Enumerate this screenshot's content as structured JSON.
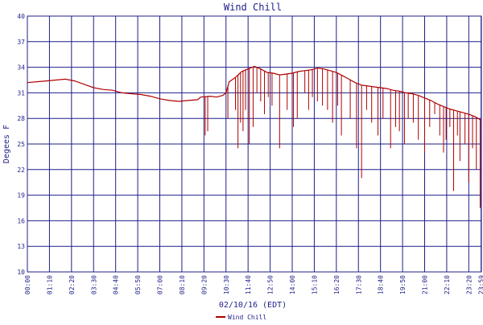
{
  "chart_data": {
    "type": "line",
    "title": "Wind Chill",
    "xlabel": "02/10/16 (EDT)",
    "ylabel": "Degees F",
    "ylim": [
      10,
      40
    ],
    "yticks": [
      10,
      13,
      16,
      19,
      22,
      25,
      28,
      31,
      34,
      37,
      40
    ],
    "x_range_minutes": [
      0,
      1440
    ],
    "xtick_labels": [
      "00:00",
      "01:10",
      "02:20",
      "03:30",
      "04:40",
      "05:50",
      "07:00",
      "08:10",
      "09:20",
      "10:30",
      "11:40",
      "12:50",
      "14:00",
      "15:10",
      "16:20",
      "17:30",
      "18:40",
      "19:50",
      "21:00",
      "22:10",
      "23:20",
      "23:59"
    ],
    "grid": true,
    "legend": "bottom-center",
    "colors": {
      "series": "#b00000",
      "grid": "#1f1f8a",
      "text": "#1f1f8a"
    },
    "series": [
      {
        "name": "Wind Chill",
        "x": [
          "00:00",
          "00:30",
          "01:00",
          "01:30",
          "02:00",
          "02:30",
          "03:00",
          "03:30",
          "04:00",
          "04:30",
          "05:00",
          "05:30",
          "06:00",
          "06:30",
          "07:00",
          "07:30",
          "08:00",
          "08:30",
          "09:00",
          "09:10",
          "09:40",
          "10:00",
          "10:20",
          "10:30",
          "10:40",
          "11:00",
          "11:20",
          "11:40",
          "12:00",
          "12:20",
          "12:40",
          "13:00",
          "13:20",
          "13:40",
          "14:00",
          "14:20",
          "14:40",
          "15:00",
          "15:20",
          "15:40",
          "16:00",
          "16:20",
          "16:40",
          "17:00",
          "17:20",
          "17:40",
          "18:00",
          "18:20",
          "18:40",
          "19:00",
          "19:20",
          "19:40",
          "20:00",
          "20:20",
          "20:40",
          "21:00",
          "21:20",
          "21:40",
          "22:00",
          "22:20",
          "22:40",
          "23:00",
          "23:20",
          "23:40",
          "23:59"
        ],
        "values": [
          32.2,
          32.3,
          32.4,
          32.5,
          32.6,
          32.4,
          32.0,
          31.6,
          31.4,
          31.3,
          31.0,
          30.9,
          30.8,
          30.6,
          30.3,
          30.1,
          30.0,
          30.1,
          30.2,
          30.5,
          30.6,
          30.5,
          30.7,
          31.0,
          32.3,
          32.8,
          33.5,
          33.8,
          34.1,
          33.8,
          33.4,
          33.3,
          33.1,
          33.2,
          33.3,
          33.5,
          33.6,
          33.7,
          33.9,
          33.8,
          33.6,
          33.4,
          33.0,
          32.6,
          32.2,
          31.9,
          31.8,
          31.7,
          31.6,
          31.5,
          31.3,
          31.2,
          31.0,
          30.9,
          30.7,
          30.4,
          30.1,
          29.7,
          29.4,
          29.1,
          28.9,
          28.7,
          28.5,
          28.2,
          27.8
        ]
      }
    ],
    "dips": [
      [
        "09:24",
        26.0
      ],
      [
        "09:32",
        26.5
      ],
      [
        "10:36",
        28.0
      ],
      [
        "11:00",
        29.0
      ],
      [
        "11:08",
        24.5
      ],
      [
        "11:16",
        27.5
      ],
      [
        "11:24",
        26.5
      ],
      [
        "11:32",
        29.0
      ],
      [
        "11:44",
        25.0
      ],
      [
        "11:56",
        27.0
      ],
      [
        "12:08",
        31.0
      ],
      [
        "12:20",
        30.0
      ],
      [
        "12:32",
        28.5
      ],
      [
        "12:44",
        30.5
      ],
      [
        "12:56",
        29.5
      ],
      [
        "13:20",
        24.5
      ],
      [
        "13:44",
        29.0
      ],
      [
        "14:04",
        27.0
      ],
      [
        "14:16",
        28.0
      ],
      [
        "14:40",
        31.0
      ],
      [
        "14:52",
        29.0
      ],
      [
        "15:04",
        30.5
      ],
      [
        "15:20",
        30.0
      ],
      [
        "15:36",
        29.5
      ],
      [
        "15:52",
        29.0
      ],
      [
        "16:08",
        27.5
      ],
      [
        "16:24",
        29.5
      ],
      [
        "16:36",
        26.0
      ],
      [
        "17:04",
        28.0
      ],
      [
        "17:24",
        24.5
      ],
      [
        "17:40",
        21.0
      ],
      [
        "17:56",
        29.0
      ],
      [
        "18:12",
        27.5
      ],
      [
        "18:32",
        26.0
      ],
      [
        "18:48",
        28.0
      ],
      [
        "19:12",
        24.5
      ],
      [
        "19:28",
        27.0
      ],
      [
        "19:40",
        26.5
      ],
      [
        "19:56",
        25.0
      ],
      [
        "20:08",
        28.0
      ],
      [
        "20:24",
        27.5
      ],
      [
        "20:40",
        25.5
      ],
      [
        "21:00",
        24.0
      ],
      [
        "21:16",
        27.0
      ],
      [
        "21:32",
        28.5
      ],
      [
        "21:48",
        26.0
      ],
      [
        "22:00",
        24.0
      ],
      [
        "22:08",
        25.5
      ],
      [
        "22:20",
        27.0
      ],
      [
        "22:32",
        19.5
      ],
      [
        "22:44",
        26.0
      ],
      [
        "22:52",
        23.0
      ],
      [
        "23:08",
        25.0
      ],
      [
        "23:20",
        20.5
      ],
      [
        "23:32",
        24.5
      ],
      [
        "23:44",
        22.0
      ],
      [
        "23:56",
        17.5
      ]
    ]
  }
}
